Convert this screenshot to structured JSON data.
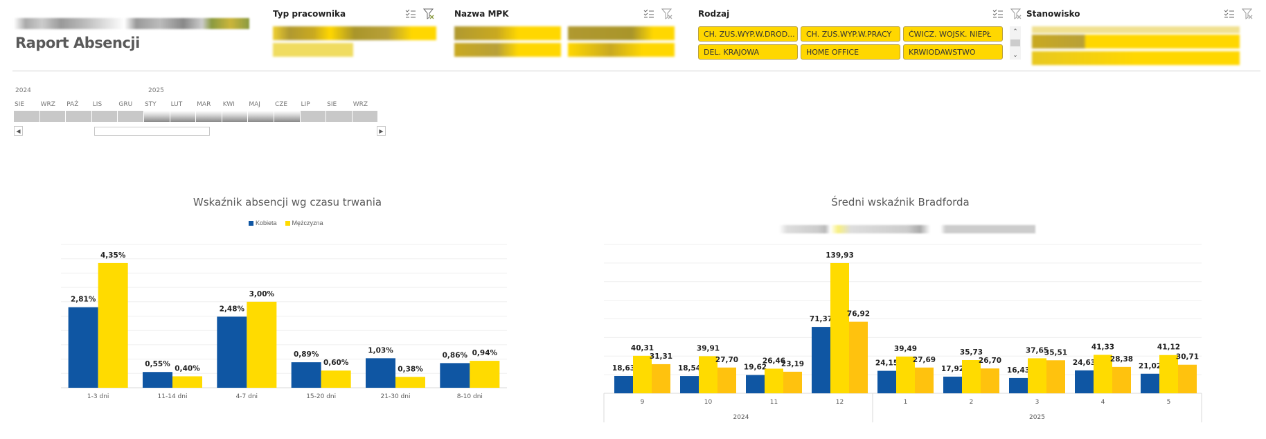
{
  "header": {
    "title": "Raport Absencji"
  },
  "slicers": {
    "typ_pracownika": {
      "title": "Typ pracownika"
    },
    "nazwa_mpk": {
      "title": "Nazwa MPK"
    },
    "rodzaj": {
      "title": "Rodzaj",
      "items": [
        "CH. ZUS.WYP.W.DROD...",
        "CH. ZUS.WYP.W.PRACY",
        "ĆWICZ. WOJSK. NIEPŁ",
        "DEL. KRAJOWA",
        "HOME OFFICE",
        "KRWIODAWSTWO"
      ]
    },
    "stanowisko": {
      "title": "Stanowisko"
    }
  },
  "timeline": {
    "years": [
      "2024",
      "2025"
    ],
    "months": [
      "SIE",
      "WRZ",
      "PAŹ",
      "LIS",
      "GRU",
      "STY",
      "LUT",
      "MAR",
      "KWI",
      "MAJ",
      "CZE",
      "LIP",
      "SIE",
      "WRZ"
    ],
    "selected": [
      false,
      false,
      false,
      false,
      false,
      true,
      true,
      true,
      true,
      true,
      true,
      false,
      false,
      false
    ]
  },
  "colors": {
    "blue": "#0F56A3",
    "yellow": "#FFDB00",
    "amber": "#FFC20E"
  },
  "chart_data": [
    {
      "type": "bar",
      "title": "Wskaźnik absencji wg czasu trwania",
      "categories": [
        "1-3 dni",
        "11-14 dni",
        "4-7 dni",
        "15-20 dni",
        "21-30 dni",
        "8-10 dni"
      ],
      "series": [
        {
          "name": "Kobieta",
          "values": [
            2.81,
            0.55,
            2.48,
            0.89,
            1.03,
            0.86
          ],
          "labels": [
            "2,81%",
            "0,55%",
            "2,48%",
            "0,89%",
            "1,03%",
            "0,86%"
          ]
        },
        {
          "name": "Mężczyzna",
          "values": [
            4.35,
            0.4,
            3.0,
            0.6,
            0.38,
            0.94
          ],
          "labels": [
            "4,35%",
            "0,40%",
            "3,00%",
            "0,60%",
            "0,38%",
            "0,94%"
          ]
        }
      ],
      "xlabel": "",
      "ylabel": "",
      "ylim": [
        0,
        5.5
      ],
      "grid": true,
      "legend": "top-center"
    },
    {
      "type": "bar",
      "title": "Średni wskaźnik Bradforda",
      "categories": [
        "9",
        "10",
        "11",
        "12",
        "1",
        "2",
        "3",
        "4",
        "5"
      ],
      "category_groups": [
        {
          "label": "2024",
          "count": 4
        },
        {
          "label": "2025",
          "count": 5
        }
      ],
      "series": [
        {
          "name": "Series 1",
          "values": [
            18.63,
            18.54,
            19.62,
            71.37,
            24.15,
            17.92,
            16.43,
            24.63,
            21.02
          ],
          "labels": [
            "18,63",
            "18,54",
            "19,62",
            "71,37",
            "24,15",
            "17,92",
            "16,43",
            "24,63",
            "21,02"
          ]
        },
        {
          "name": "Series 2",
          "values": [
            40.31,
            39.91,
            26.46,
            139.93,
            39.49,
            35.73,
            37.65,
            41.33,
            41.12
          ],
          "labels": [
            "40,31",
            "39,91",
            "26,46",
            "139,93",
            "39,49",
            "35,73",
            "37,65",
            "41,33",
            "41,12"
          ]
        },
        {
          "name": "Series 3",
          "values": [
            31.31,
            27.7,
            23.19,
            76.92,
            27.69,
            26.7,
            35.51,
            28.38,
            30.71
          ],
          "labels": [
            "31,31",
            "27,70",
            "23,19",
            "76,92",
            "27,69",
            "26,70",
            "35,51",
            "28,38",
            "30,71"
          ]
        }
      ],
      "xlabel": "",
      "ylabel": "",
      "ylim": [
        0,
        160
      ],
      "grid": true,
      "legend": "top-center"
    }
  ]
}
